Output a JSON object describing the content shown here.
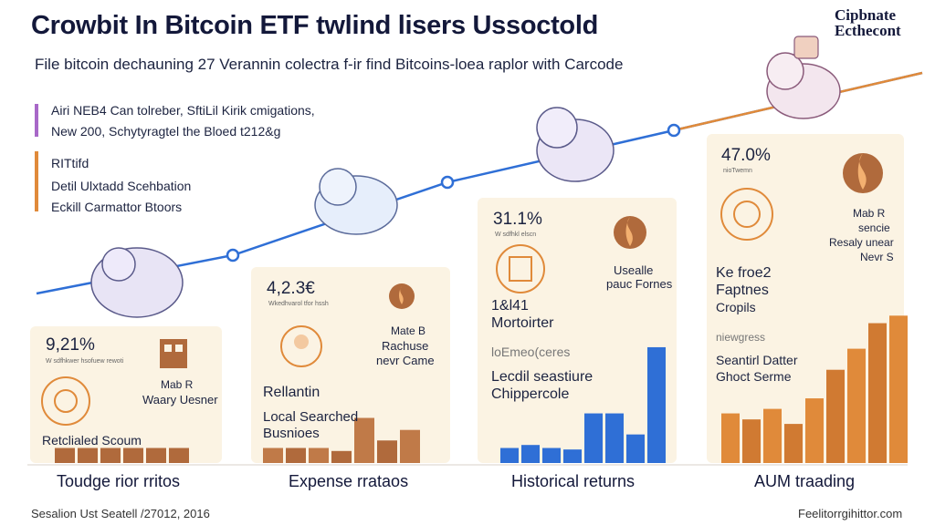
{
  "header": {
    "title": "Crowbit In Bitcoin ETF twlind lisers Ussoctold",
    "brand_line1": "Cipbnate",
    "brand_line2": "Ecthecont",
    "subtitle": "File bitcoin dechauning 27 Verannin colectra f-ir find Bitcoins-loea raplor with Carcode"
  },
  "legend": {
    "group1": [
      "Airi NEB4 Can tolreber, SftiLil Kirik cmigations,",
      "New 200, Schytyragtel the Bloed t212&g"
    ],
    "group2": [
      "RITtifd",
      "Detil Ulxtadd Scehbation",
      "Eckill Carmattor Btoors"
    ]
  },
  "panels": [
    {
      "pct": "9,21%",
      "tiny": "W sdfhkwer hsofuew rewoti",
      "small": "Mab R",
      "label": "Waary Uesner",
      "bottom": "Retclialed Scoum",
      "caption": "Toudge rior rritos"
    },
    {
      "pct": "4,2.3€",
      "tiny": "Wkedhvarol tfor hssh",
      "small": "Mate B",
      "label": "Rachuse",
      "label2": "nevr Came",
      "big": "Rellantin",
      "bottom": "Local Searched",
      "bottom2": "Busnioes",
      "caption": "Expense rrataos"
    },
    {
      "pct": "31.1%",
      "tiny": "W sdfhkl elscn",
      "small": "Usealle",
      "label": "pauc Fornes",
      "big": "1&l41",
      "big2": "Mortoirter",
      "mid": "loEmeo(ceres",
      "bottom": "Lecdil seastiure",
      "bottom2": "Chippercole",
      "caption": "Historical returns"
    },
    {
      "pct": "47.0%",
      "tiny": "nioTwemn",
      "small": "Mab R",
      "label": "sencie",
      "label2": "Resaly unear",
      "label3": "Nevr S",
      "big": "Ke froe2",
      "big2": "Faptnes",
      "big3": "Cropils",
      "mid": "niewgress",
      "bottom": "Seantirl Datter",
      "bottom2": "Ghoct Serme",
      "caption": "AUM traading"
    }
  ],
  "footer": {
    "left": "Sesalion Ust Seatell /27012, 2016",
    "right": "Feelitorrgihittor.com"
  },
  "colors": {
    "blue": "#2f6fd6",
    "orange": "#e08a3a",
    "brown": "#b06a3c",
    "cream": "#fbf3e3",
    "purple": "#a868c8"
  },
  "chart_data": [
    {
      "type": "bar",
      "panel": 1,
      "values": [
        1,
        1,
        1,
        1,
        1,
        1
      ]
    },
    {
      "type": "bar",
      "panel": 2,
      "values": [
        1,
        1,
        1,
        0.8,
        3,
        1.5,
        2.2
      ]
    },
    {
      "type": "bar",
      "panel": 3,
      "values": [
        1,
        1.2,
        1,
        0.9,
        3.3,
        3.3,
        1.9,
        7.7
      ]
    },
    {
      "type": "bar",
      "panel": 4,
      "values": [
        3.3,
        2.9,
        3.6,
        2.6,
        4.3,
        6.2,
        7.6,
        9.3,
        9.8
      ]
    }
  ]
}
